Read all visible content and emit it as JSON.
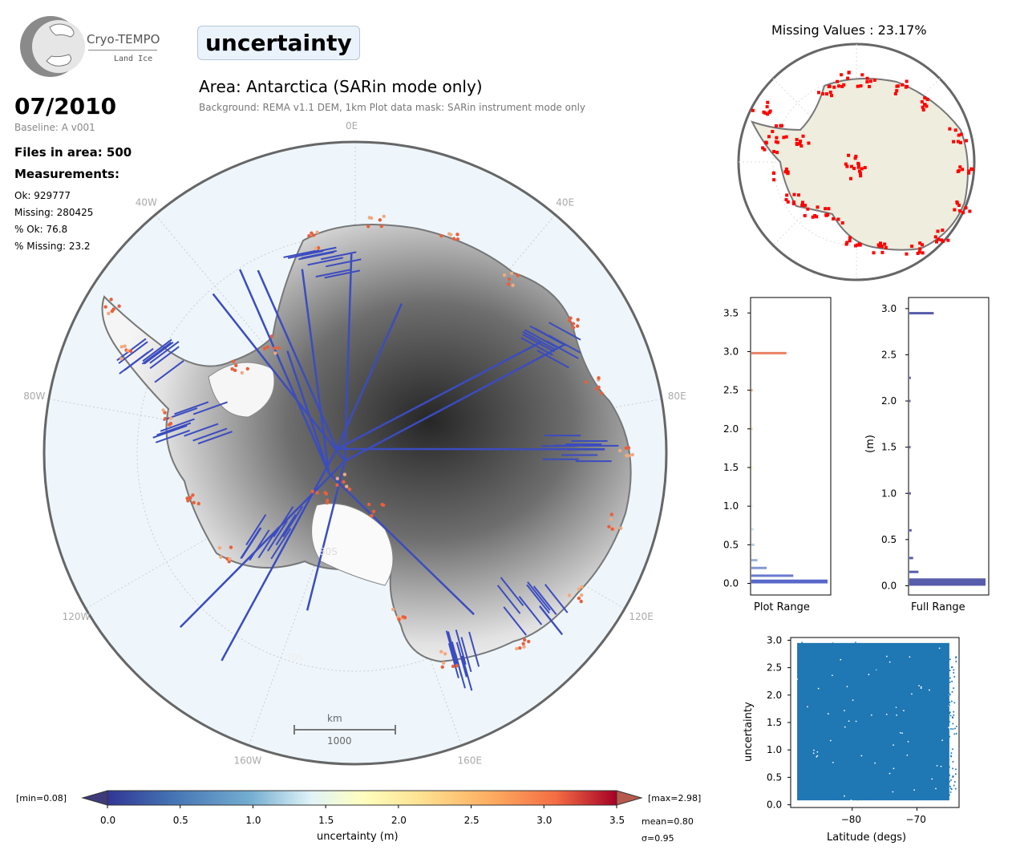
{
  "logo": {
    "name": "Cryo-TEMPO",
    "subtitle": "Land Ice"
  },
  "header": {
    "parameter": "uncertainty",
    "area_title": "Area: Antarctica (SARin mode only)",
    "area_subtitle": "Background: REMA v1.1 DEM, 1km   Plot data mask: SARin instrument mode only"
  },
  "info": {
    "date": "07/2010",
    "baseline": "Baseline: A v001",
    "files": "Files in area: 500",
    "measurements_heading": "Measurements:",
    "ok": "Ok: 929777",
    "missing": "Missing: 280425",
    "pct_ok": "% Ok: 76.8",
    "pct_missing": "% Missing: 23.2"
  },
  "main_map": {
    "longitude_labels": [
      "0E",
      "40E",
      "80E",
      "120E",
      "160E",
      "160W",
      "120W",
      "80W",
      "40W"
    ],
    "latitude_labels": [
      "80S",
      "70S"
    ],
    "scale_bar": {
      "unit": "km",
      "value": "1000"
    },
    "colors": {
      "ocean": "#eef6fc",
      "ice_low": "#f2f2f2",
      "ice_high": "#2a2a2a",
      "track": "#3b4cc0",
      "coast_hot": "#e8603c"
    }
  },
  "colorbar": {
    "min_label": "[min=0.08]",
    "max_label": "[max=2.98]",
    "ticks": [
      "0.0",
      "0.5",
      "1.0",
      "1.5",
      "2.0",
      "2.5",
      "3.0",
      "3.5"
    ],
    "label": "uncertainty (m)",
    "mean": "mean=0.80",
    "sigma": "σ=0.95",
    "colormap": "RdYlBu_r"
  },
  "missing_map": {
    "title": "Missing Values : 23.17%",
    "colors": {
      "land": "#efedde",
      "missing": "#ff0000"
    }
  },
  "chart_data": [
    {
      "type": "bar",
      "orientation": "horizontal",
      "title": "",
      "xlabel": "Plot Range",
      "ylabel": "",
      "ylim": [
        -0.15,
        3.7
      ],
      "yticks": [
        "0.0",
        "0.5",
        "1.0",
        "1.5",
        "2.0",
        "2.5",
        "3.0",
        "3.5"
      ],
      "bins": [
        0.05,
        0.1,
        0.2,
        0.3,
        0.5,
        0.7,
        1.0,
        1.5,
        2.0,
        2.5,
        2.98
      ],
      "values": [
        1.0,
        0.55,
        0.2,
        0.08,
        0.04,
        0.03,
        0.02,
        0.015,
        0.01,
        0.01,
        0.46
      ],
      "colors": [
        "#3b4cc0",
        "#4d63c8",
        "#6d86c9",
        "#8aa6d1",
        "#a9c4dd",
        "#c7dcea",
        "#e3eef3",
        "#fee99e",
        "#fdc171",
        "#f67f54",
        "#e86a4a"
      ]
    },
    {
      "type": "bar",
      "orientation": "horizontal",
      "title": "",
      "xlabel": "Full Range",
      "ylabel": "(m)",
      "ylim": [
        -0.1,
        3.12
      ],
      "yticks": [
        "0.0",
        "0.5",
        "1.0",
        "1.5",
        "2.0",
        "2.5",
        "3.0"
      ],
      "bins": [
        0.08,
        0.15,
        0.3,
        0.6,
        1.0,
        1.5,
        2.0,
        2.25,
        2.95
      ],
      "values": [
        1.0,
        0.12,
        0.05,
        0.03,
        0.02,
        0.015,
        0.01,
        0.02,
        0.32
      ],
      "color": "#3b3f9e"
    },
    {
      "type": "scatter",
      "title": "",
      "xlabel": "Latitude (degs)",
      "ylabel": "uncertainty",
      "xlim": [
        -89.5,
        -63.5
      ],
      "ylim": [
        -0.05,
        3.05
      ],
      "xticks": [
        "−80",
        "−70"
      ],
      "yticks": [
        "0.0",
        "0.5",
        "1.0",
        "1.5",
        "2.0",
        "2.5",
        "3.0"
      ],
      "color": "#1f77b4"
    }
  ]
}
